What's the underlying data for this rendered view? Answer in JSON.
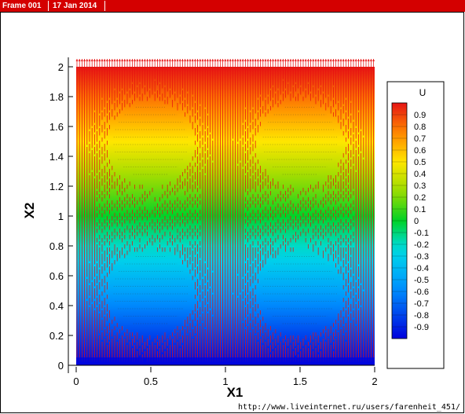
{
  "header": {
    "frame_label": "Frame 001",
    "date_label": "17 Jan 2014"
  },
  "footer": {
    "url": "http://www.liveinternet.ru/users/farenheit_451/"
  },
  "colors": {
    "header_bar": "#d40000",
    "vector_field": "#e81010",
    "axis": "#000000"
  },
  "chart_data": {
    "type": "heatmap",
    "title": "",
    "xlabel": "X1",
    "ylabel": "X2",
    "xlim": [
      0,
      2
    ],
    "ylim": [
      0,
      2
    ],
    "x_ticks": [
      "0",
      "0.5",
      "1",
      "1.5",
      "2"
    ],
    "y_ticks": [
      "0",
      "0.2",
      "0.4",
      "0.6",
      "0.8",
      "1",
      "1.2",
      "1.4",
      "1.6",
      "1.8",
      "2"
    ],
    "x_tick_values": [
      0,
      0.5,
      1,
      1.5,
      2
    ],
    "y_tick_values": [
      0,
      0.2,
      0.4,
      0.6,
      0.8,
      1,
      1.2,
      1.4,
      1.6,
      1.8,
      2
    ],
    "legend": {
      "variable": "U",
      "placement": "right",
      "levels": [
        "0.9",
        "0.8",
        "0.7",
        "0.6",
        "0.5",
        "0.4",
        "0.3",
        "0.2",
        "0.1",
        "0",
        "-0.1",
        "-0.2",
        "-0.3",
        "-0.4",
        "-0.5",
        "-0.6",
        "-0.7",
        "-0.8",
        "-0.9"
      ],
      "level_values": [
        0.9,
        0.8,
        0.7,
        0.6,
        0.5,
        0.4,
        0.3,
        0.2,
        0.1,
        0,
        -0.1,
        -0.2,
        -0.3,
        -0.4,
        -0.5,
        -0.6,
        -0.7,
        -0.8,
        -0.9
      ],
      "min": -1,
      "max": 1
    },
    "obstacles": [
      {
        "cx": 0.5,
        "cy": 1.5,
        "r": 0.25
      },
      {
        "cx": 1.5,
        "cy": 1.5,
        "r": 0.25
      },
      {
        "cx": 0.5,
        "cy": 0.5,
        "r": 0.25
      },
      {
        "cx": 1.5,
        "cy": 0.5,
        "r": 0.25
      }
    ],
    "field": "U varies linearly with X2 from -1 at X2=0 to 1 at X2=2",
    "grid": false
  }
}
